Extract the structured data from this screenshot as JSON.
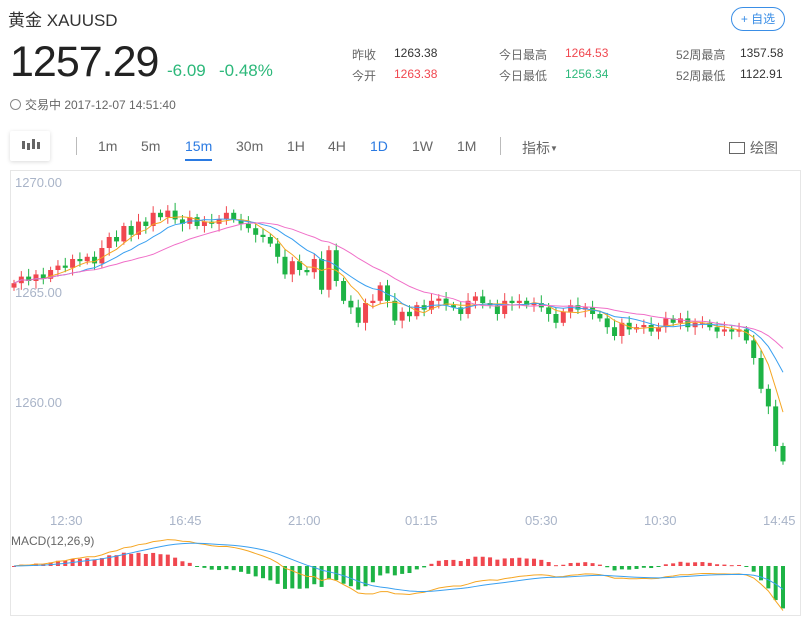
{
  "header": {
    "name": "黄金",
    "symbol": "XAUUSD",
    "add_label": "+ 自选"
  },
  "quote": {
    "price": "1257.29",
    "change": "-6.09",
    "change_pct": "-0.48%",
    "stats": [
      {
        "label": "昨收",
        "value": "1263.38",
        "color": "#333333"
      },
      {
        "label": "今开",
        "value": "1263.38",
        "color": "#f0474f"
      },
      {
        "label": "今日最高",
        "value": "1264.53",
        "color": "#f0474f"
      },
      {
        "label": "今日最低",
        "value": "1256.34",
        "color": "#2cb87a"
      },
      {
        "label": "52周最高",
        "value": "1357.58",
        "color": "#333333"
      },
      {
        "label": "52周最低",
        "value": "1122.91",
        "color": "#333333"
      }
    ],
    "status": "交易中 2017-12-07 14:51:40"
  },
  "toolbar": {
    "periods": [
      "1m",
      "5m",
      "15m",
      "30m",
      "1H",
      "4H",
      "1D",
      "1W",
      "1M"
    ],
    "active": "15m",
    "indicator": "指标",
    "draw": "绘图"
  },
  "chart_data": {
    "type": "candlestick",
    "ylim": [
      1256.5,
      1270.2
    ],
    "y_ticks": [
      "1270.00",
      "1265.00",
      "1260.00"
    ],
    "x_ticks": [
      "12:30",
      "16:45",
      "21:00",
      "01:15",
      "05:30",
      "10:30",
      "14:45"
    ],
    "up_color": "#f0474f",
    "down_color": "#1db345",
    "ma_colors": [
      "#f5a623",
      "#3aa0f0",
      "#f06fc8"
    ],
    "macd_label": "MACD(12,26,9)",
    "closes": [
      1265.4,
      1265.7,
      1265.5,
      1265.8,
      1265.6,
      1266.0,
      1266.2,
      1266.1,
      1266.5,
      1266.4,
      1266.6,
      1266.3,
      1267.0,
      1267.5,
      1267.3,
      1268.0,
      1267.6,
      1268.2,
      1268.0,
      1268.6,
      1268.4,
      1268.7,
      1268.3,
      1268.1,
      1268.4,
      1268.0,
      1268.2,
      1268.1,
      1268.3,
      1268.6,
      1268.3,
      1268.1,
      1267.9,
      1267.6,
      1267.5,
      1267.2,
      1266.6,
      1265.8,
      1266.4,
      1266.0,
      1265.9,
      1266.5,
      1265.1,
      1266.9,
      1265.5,
      1264.6,
      1264.3,
      1263.6,
      1264.5,
      1264.6,
      1265.3,
      1264.6,
      1263.7,
      1264.1,
      1263.9,
      1264.4,
      1264.2,
      1264.6,
      1264.7,
      1264.4,
      1264.3,
      1264.0,
      1264.6,
      1264.8,
      1264.5,
      1264.4,
      1264.0,
      1264.6,
      1264.5,
      1264.6,
      1264.4,
      1264.5,
      1264.3,
      1264.0,
      1263.6,
      1264.1,
      1264.4,
      1264.2,
      1264.3,
      1264.0,
      1263.8,
      1263.4,
      1263.0,
      1263.6,
      1263.3,
      1263.4,
      1263.5,
      1263.2,
      1263.4,
      1263.8,
      1263.6,
      1263.8,
      1263.4,
      1263.6,
      1263.6,
      1263.4,
      1263.2,
      1263.3,
      1263.2,
      1263.3,
      1262.8,
      1262.0,
      1260.6,
      1259.8,
      1258.0,
      1257.3
    ]
  }
}
